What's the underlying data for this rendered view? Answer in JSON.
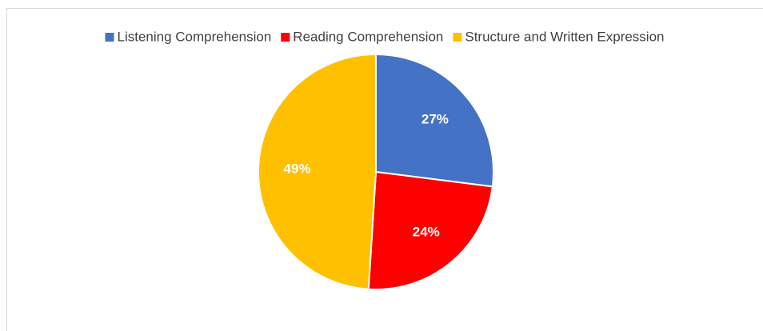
{
  "chart_data": {
    "type": "pie",
    "categories": [
      "Listening Comprehension",
      "Reading Comprehension",
      "Structure and Written Expression"
    ],
    "values": [
      27,
      24,
      49
    ],
    "value_labels": [
      "27%",
      "24%",
      "49%"
    ],
    "colors": [
      "#4472c4",
      "#ff0000",
      "#ffc000"
    ],
    "legend": "top"
  }
}
